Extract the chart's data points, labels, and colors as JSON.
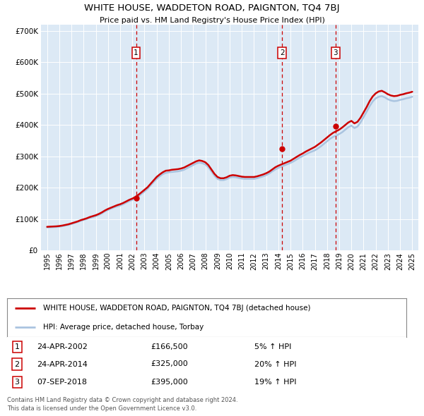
{
  "title": "WHITE HOUSE, WADDETON ROAD, PAIGNTON, TQ4 7BJ",
  "subtitle": "Price paid vs. HM Land Registry's House Price Index (HPI)",
  "plot_bg_color": "#dce9f5",
  "hpi_color": "#aac4e0",
  "price_color": "#cc0000",
  "transactions": [
    {
      "date_num": 2002.31,
      "price": 166500,
      "label": "1"
    },
    {
      "date_num": 2014.31,
      "price": 325000,
      "label": "2"
    },
    {
      "date_num": 2018.69,
      "price": 395000,
      "label": "3"
    }
  ],
  "transaction_dates_str": [
    "24-APR-2002",
    "24-APR-2014",
    "07-SEP-2018"
  ],
  "transaction_prices_str": [
    "£166,500",
    "£325,000",
    "£395,000"
  ],
  "transaction_pct": [
    "5% ↑ HPI",
    "20% ↑ HPI",
    "19% ↑ HPI"
  ],
  "legend_line1": "WHITE HOUSE, WADDETON ROAD, PAIGNTON, TQ4 7BJ (detached house)",
  "legend_line2": "HPI: Average price, detached house, Torbay",
  "footer1": "Contains HM Land Registry data © Crown copyright and database right 2024.",
  "footer2": "This data is licensed under the Open Government Licence v3.0.",
  "ylim": [
    0,
    720000
  ],
  "yticks": [
    0,
    100000,
    200000,
    300000,
    400000,
    500000,
    600000,
    700000
  ],
  "xlim_start": 1994.5,
  "xlim_end": 2025.5,
  "hpi_data_x": [
    1995.0,
    1995.25,
    1995.5,
    1995.75,
    1996.0,
    1996.25,
    1996.5,
    1996.75,
    1997.0,
    1997.25,
    1997.5,
    1997.75,
    1998.0,
    1998.25,
    1998.5,
    1998.75,
    1999.0,
    1999.25,
    1999.5,
    1999.75,
    2000.0,
    2000.25,
    2000.5,
    2000.75,
    2001.0,
    2001.25,
    2001.5,
    2001.75,
    2002.0,
    2002.25,
    2002.5,
    2002.75,
    2003.0,
    2003.25,
    2003.5,
    2003.75,
    2004.0,
    2004.25,
    2004.5,
    2004.75,
    2005.0,
    2005.25,
    2005.5,
    2005.75,
    2006.0,
    2006.25,
    2006.5,
    2006.75,
    2007.0,
    2007.25,
    2007.5,
    2007.75,
    2008.0,
    2008.25,
    2008.5,
    2008.75,
    2009.0,
    2009.25,
    2009.5,
    2009.75,
    2010.0,
    2010.25,
    2010.5,
    2010.75,
    2011.0,
    2011.25,
    2011.5,
    2011.75,
    2012.0,
    2012.25,
    2012.5,
    2012.75,
    2013.0,
    2013.25,
    2013.5,
    2013.75,
    2014.0,
    2014.25,
    2014.5,
    2014.75,
    2015.0,
    2015.25,
    2015.5,
    2015.75,
    2016.0,
    2016.25,
    2016.5,
    2016.75,
    2017.0,
    2017.25,
    2017.5,
    2017.75,
    2018.0,
    2018.25,
    2018.5,
    2018.75,
    2019.0,
    2019.25,
    2019.5,
    2019.75,
    2020.0,
    2020.25,
    2020.5,
    2020.75,
    2021.0,
    2021.25,
    2021.5,
    2021.75,
    2022.0,
    2022.25,
    2022.5,
    2022.75,
    2023.0,
    2023.25,
    2023.5,
    2023.75,
    2024.0,
    2024.25,
    2024.5,
    2024.75,
    2025.0
  ],
  "hpi_data_y": [
    73000,
    73500,
    74000,
    74500,
    75500,
    77000,
    79000,
    81000,
    84000,
    87000,
    90000,
    94000,
    97000,
    100000,
    103000,
    106000,
    109000,
    113000,
    118000,
    124000,
    129000,
    133000,
    137000,
    140000,
    143000,
    147000,
    152000,
    157000,
    161000,
    165000,
    172000,
    180000,
    188000,
    196000,
    207000,
    218000,
    228000,
    236000,
    243000,
    247000,
    249000,
    250000,
    251000,
    252000,
    254000,
    257000,
    262000,
    267000,
    272000,
    277000,
    280000,
    278000,
    274000,
    265000,
    252000,
    238000,
    228000,
    224000,
    224000,
    227000,
    232000,
    234000,
    233000,
    231000,
    229000,
    228000,
    228000,
    228000,
    228000,
    230000,
    233000,
    236000,
    240000,
    245000,
    252000,
    258000,
    263000,
    267000,
    271000,
    275000,
    279000,
    284000,
    290000,
    296000,
    301000,
    306000,
    311000,
    315000,
    319000,
    325000,
    332000,
    340000,
    348000,
    356000,
    362000,
    366000,
    371000,
    377000,
    385000,
    393000,
    398000,
    390000,
    395000,
    408000,
    425000,
    442000,
    460000,
    475000,
    485000,
    490000,
    492000,
    488000,
    482000,
    478000,
    476000,
    477000,
    480000,
    482000,
    485000,
    487000,
    490000
  ],
  "price_data_x": [
    1995.0,
    1995.25,
    1995.5,
    1995.75,
    1996.0,
    1996.25,
    1996.5,
    1996.75,
    1997.0,
    1997.25,
    1997.5,
    1997.75,
    1998.0,
    1998.25,
    1998.5,
    1998.75,
    1999.0,
    1999.25,
    1999.5,
    1999.75,
    2000.0,
    2000.25,
    2000.5,
    2000.75,
    2001.0,
    2001.25,
    2001.5,
    2001.75,
    2002.0,
    2002.25,
    2002.5,
    2002.75,
    2003.0,
    2003.25,
    2003.5,
    2003.75,
    2004.0,
    2004.25,
    2004.5,
    2004.75,
    2005.0,
    2005.25,
    2005.5,
    2005.75,
    2006.0,
    2006.25,
    2006.5,
    2006.75,
    2007.0,
    2007.25,
    2007.5,
    2007.75,
    2008.0,
    2008.25,
    2008.5,
    2008.75,
    2009.0,
    2009.25,
    2009.5,
    2009.75,
    2010.0,
    2010.25,
    2010.5,
    2010.75,
    2011.0,
    2011.25,
    2011.5,
    2011.75,
    2012.0,
    2012.25,
    2012.5,
    2012.75,
    2013.0,
    2013.25,
    2013.5,
    2013.75,
    2014.0,
    2014.25,
    2014.5,
    2014.75,
    2015.0,
    2015.25,
    2015.5,
    2015.75,
    2016.0,
    2016.25,
    2016.5,
    2016.75,
    2017.0,
    2017.25,
    2017.5,
    2017.75,
    2018.0,
    2018.25,
    2018.5,
    2018.75,
    2019.0,
    2019.25,
    2019.5,
    2019.75,
    2020.0,
    2020.25,
    2020.5,
    2020.75,
    2021.0,
    2021.25,
    2021.5,
    2021.75,
    2022.0,
    2022.25,
    2022.5,
    2022.75,
    2023.0,
    2023.25,
    2023.5,
    2023.75,
    2024.0,
    2024.25,
    2024.5,
    2024.75,
    2025.0
  ],
  "price_data_y": [
    75000,
    75500,
    76000,
    76500,
    77500,
    79000,
    81000,
    83000,
    86000,
    89000,
    92000,
    96000,
    99000,
    102000,
    106000,
    109000,
    112000,
    116000,
    121000,
    127000,
    132000,
    136000,
    140000,
    144000,
    147000,
    151000,
    156000,
    161000,
    165000,
    170000,
    177000,
    185000,
    193000,
    201000,
    212000,
    223000,
    234000,
    242000,
    249000,
    254000,
    255000,
    257000,
    258000,
    259000,
    261000,
    264000,
    269000,
    274000,
    279000,
    284000,
    287000,
    285000,
    281000,
    272000,
    258000,
    244000,
    234000,
    230000,
    230000,
    233000,
    238000,
    240000,
    239000,
    237000,
    235000,
    234000,
    234000,
    234000,
    234000,
    236000,
    239000,
    242000,
    246000,
    251000,
    258000,
    265000,
    270000,
    274000,
    278000,
    282000,
    286000,
    292000,
    298000,
    304000,
    309000,
    315000,
    320000,
    325000,
    330000,
    337000,
    344000,
    352000,
    360000,
    368000,
    375000,
    380000,
    385000,
    392000,
    400000,
    408000,
    413000,
    405000,
    410000,
    423000,
    440000,
    457000,
    476000,
    491000,
    501000,
    507000,
    509000,
    504000,
    498000,
    494000,
    492000,
    493000,
    496000,
    498000,
    501000,
    503000,
    506000
  ]
}
